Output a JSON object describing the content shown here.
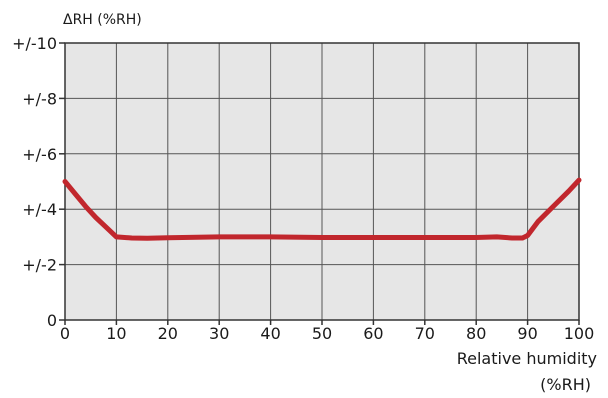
{
  "chart_data": {
    "type": "line",
    "title": "",
    "ylabel": "ΔRH (%RH)",
    "xlabel_line1": "Relative humidity",
    "xlabel_line2": "(%RH)",
    "xlim": [
      0,
      100
    ],
    "ylim": [
      0,
      10
    ],
    "grid": true,
    "x_ticks": [
      0,
      10,
      20,
      30,
      40,
      50,
      60,
      70,
      80,
      90,
      100
    ],
    "x_tick_labels": [
      "0",
      "10",
      "20",
      "30",
      "40",
      "50",
      "60",
      "70",
      "80",
      "90",
      "100"
    ],
    "y_ticks": [
      0,
      2,
      4,
      6,
      8,
      10
    ],
    "y_tick_labels": [
      "0",
      "+/-2",
      "+/-4",
      "+/-6",
      "+/-8",
      "+/-10"
    ],
    "series": [
      {
        "color": "#c1272d",
        "x": [
          0,
          2,
          4,
          6,
          8,
          10,
          13,
          16,
          20,
          30,
          40,
          50,
          60,
          70,
          80,
          84,
          87,
          89,
          90,
          92,
          95,
          98,
          100
        ],
        "y": [
          5.0,
          4.55,
          4.1,
          3.7,
          3.35,
          3.0,
          2.96,
          2.95,
          2.97,
          3.0,
          3.0,
          2.98,
          2.98,
          2.98,
          2.98,
          3.0,
          2.96,
          2.96,
          3.05,
          3.55,
          4.1,
          4.65,
          5.05
        ]
      }
    ],
    "plot_background": "#e6e6e6",
    "grid_color": "#555555"
  }
}
